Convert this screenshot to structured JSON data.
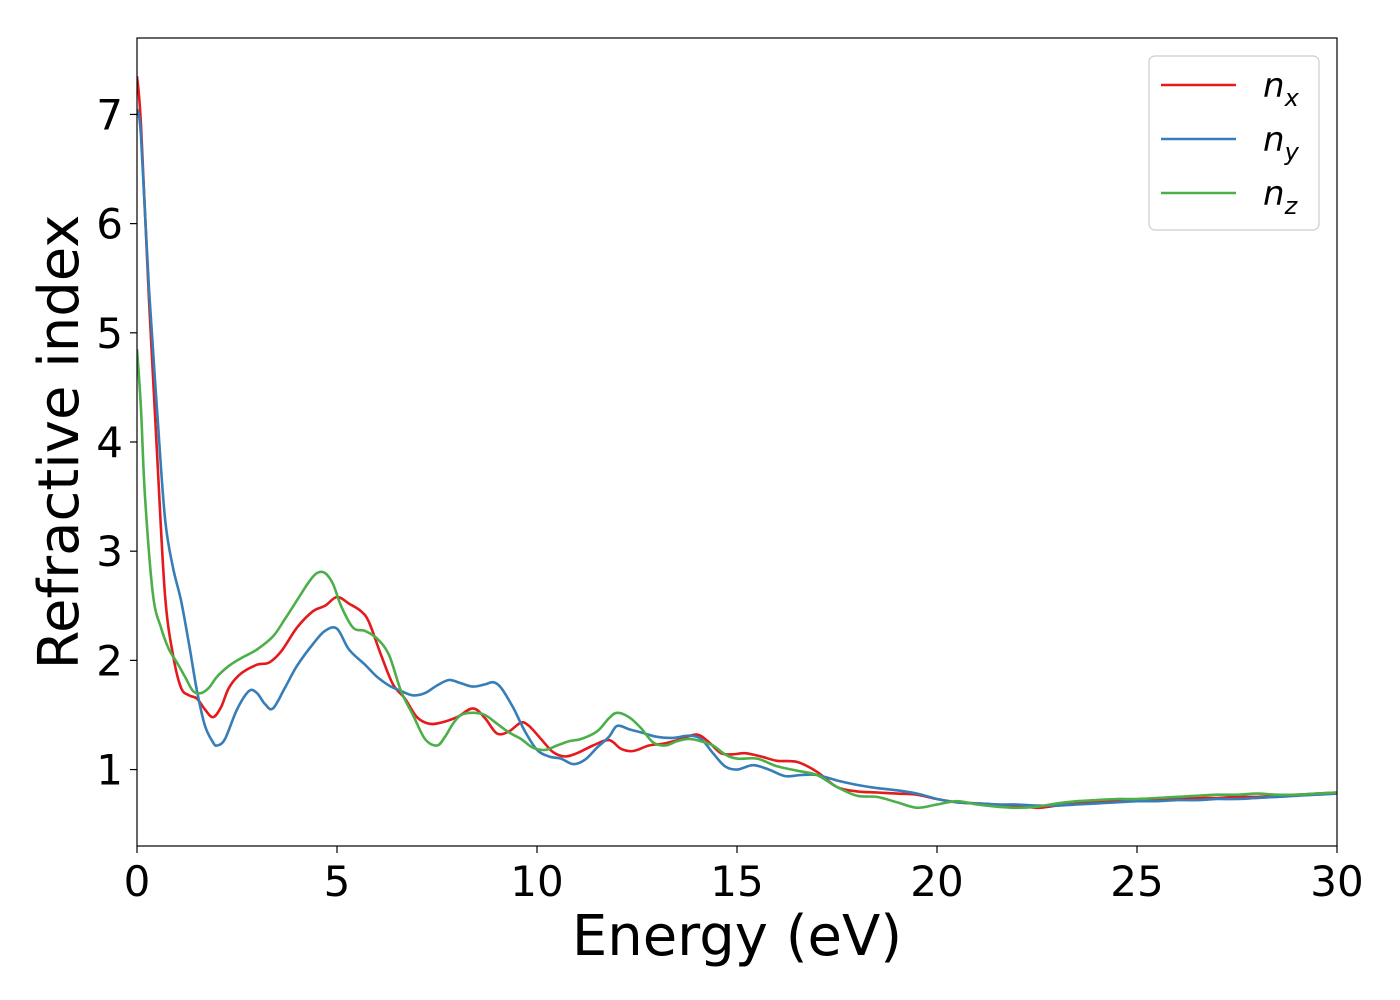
{
  "chart_data": {
    "type": "line",
    "title": "",
    "xlabel": "Energy (eV)",
    "ylabel": "Refractive index",
    "xlim": [
      0,
      30
    ],
    "ylim": [
      0.3,
      7.7
    ],
    "xticks": [
      0,
      5,
      10,
      15,
      20,
      25,
      30
    ],
    "yticks": [
      1,
      2,
      3,
      4,
      5,
      6,
      7
    ],
    "grid": false,
    "legend_position": "top-right",
    "series": [
      {
        "name": "n",
        "subscript": "x",
        "color": "#e41a1c",
        "x": [
          0,
          0.1,
          0.3,
          0.5,
          0.7,
          0.9,
          1.1,
          1.3,
          1.5,
          1.7,
          1.9,
          2.1,
          2.3,
          2.6,
          3.0,
          3.3,
          3.6,
          4.0,
          4.4,
          4.7,
          5.0,
          5.3,
          5.6,
          5.8,
          6.1,
          6.4,
          6.7,
          7.0,
          7.3,
          7.6,
          8.0,
          8.4,
          8.7,
          9.0,
          9.3,
          9.6,
          9.8,
          10.1,
          10.4,
          10.7,
          11.0,
          11.4,
          11.8,
          12.1,
          12.4,
          12.8,
          13.2,
          13.6,
          14.0,
          14.3,
          14.6,
          14.9,
          15.2,
          15.6,
          16.0,
          16.5,
          17.0,
          17.5,
          18.0,
          18.5,
          19.0,
          19.5,
          20.0,
          20.5,
          21.0,
          21.5,
          22.0,
          22.5,
          23.0,
          23.5,
          24.0,
          24.5,
          25.0,
          25.5,
          26.0,
          26.5,
          27.0,
          27.5,
          28.0,
          28.5,
          29.0,
          29.5,
          30.0
        ],
        "y": [
          7.35,
          6.9,
          5.3,
          3.9,
          2.6,
          2.05,
          1.75,
          1.68,
          1.65,
          1.55,
          1.48,
          1.57,
          1.75,
          1.88,
          1.96,
          1.98,
          2.08,
          2.3,
          2.45,
          2.5,
          2.58,
          2.52,
          2.45,
          2.35,
          2.05,
          1.78,
          1.65,
          1.48,
          1.42,
          1.43,
          1.48,
          1.56,
          1.47,
          1.33,
          1.35,
          1.43,
          1.4,
          1.28,
          1.16,
          1.12,
          1.15,
          1.22,
          1.27,
          1.19,
          1.17,
          1.22,
          1.24,
          1.28,
          1.32,
          1.25,
          1.15,
          1.14,
          1.15,
          1.12,
          1.08,
          1.07,
          0.98,
          0.84,
          0.8,
          0.79,
          0.78,
          0.77,
          0.73,
          0.7,
          0.69,
          0.68,
          0.67,
          0.65,
          0.67,
          0.69,
          0.7,
          0.71,
          0.72,
          0.72,
          0.73,
          0.74,
          0.74,
          0.75,
          0.75,
          0.76,
          0.77,
          0.78,
          0.79
        ]
      },
      {
        "name": "n",
        "subscript": "y",
        "color": "#377eb8",
        "x": [
          0,
          0.1,
          0.3,
          0.5,
          0.7,
          0.9,
          1.1,
          1.3,
          1.5,
          1.7,
          1.9,
          2.0,
          2.2,
          2.5,
          2.8,
          3.0,
          3.2,
          3.4,
          3.7,
          4.0,
          4.4,
          4.7,
          5.0,
          5.3,
          5.7,
          6.0,
          6.3,
          6.6,
          6.9,
          7.2,
          7.5,
          7.8,
          8.1,
          8.4,
          8.7,
          8.9,
          9.1,
          9.4,
          9.7,
          10.0,
          10.3,
          10.6,
          10.9,
          11.2,
          11.5,
          11.8,
          12.0,
          12.3,
          12.6,
          13.0,
          13.4,
          13.8,
          14.1,
          14.4,
          14.7,
          15.0,
          15.4,
          15.8,
          16.2,
          16.6,
          17.0,
          17.5,
          18.0,
          18.5,
          19.0,
          19.5,
          20.0,
          20.5,
          21.0,
          21.5,
          22.0,
          22.5,
          23.0,
          23.5,
          24.0,
          24.5,
          25.0,
          25.5,
          26.0,
          26.5,
          27.0,
          27.5,
          28.0,
          28.5,
          29.0,
          29.5,
          30.0
        ],
        "y": [
          7.05,
          6.8,
          5.4,
          4.3,
          3.3,
          2.85,
          2.55,
          2.15,
          1.72,
          1.4,
          1.25,
          1.22,
          1.28,
          1.55,
          1.72,
          1.7,
          1.6,
          1.56,
          1.75,
          1.95,
          2.15,
          2.27,
          2.29,
          2.1,
          1.96,
          1.85,
          1.77,
          1.72,
          1.68,
          1.7,
          1.77,
          1.82,
          1.79,
          1.76,
          1.78,
          1.8,
          1.75,
          1.57,
          1.35,
          1.18,
          1.12,
          1.1,
          1.05,
          1.09,
          1.2,
          1.3,
          1.4,
          1.37,
          1.34,
          1.3,
          1.29,
          1.31,
          1.28,
          1.15,
          1.03,
          1.0,
          1.04,
          1.0,
          0.94,
          0.95,
          0.95,
          0.9,
          0.86,
          0.83,
          0.81,
          0.78,
          0.73,
          0.7,
          0.69,
          0.68,
          0.68,
          0.67,
          0.67,
          0.68,
          0.69,
          0.7,
          0.71,
          0.71,
          0.72,
          0.72,
          0.73,
          0.73,
          0.74,
          0.75,
          0.76,
          0.77,
          0.78
        ]
      },
      {
        "name": "n",
        "subscript": "z",
        "color": "#4daf4a",
        "x": [
          0,
          0.1,
          0.2,
          0.4,
          0.6,
          0.8,
          1.0,
          1.2,
          1.4,
          1.6,
          1.8,
          2.0,
          2.3,
          2.6,
          3.0,
          3.4,
          3.7,
          4.0,
          4.3,
          4.5,
          4.7,
          4.9,
          5.1,
          5.4,
          5.7,
          6.0,
          6.3,
          6.6,
          6.9,
          7.2,
          7.5,
          7.7,
          7.9,
          8.1,
          8.4,
          8.7,
          9.0,
          9.3,
          9.6,
          9.9,
          10.2,
          10.5,
          10.8,
          11.1,
          11.5,
          11.8,
          12.0,
          12.3,
          12.6,
          12.9,
          13.2,
          13.5,
          13.8,
          14.1,
          14.4,
          14.7,
          15.0,
          15.5,
          16.0,
          16.5,
          17.0,
          17.5,
          18.0,
          18.5,
          19.0,
          19.5,
          20.0,
          20.5,
          21.0,
          21.5,
          22.0,
          22.5,
          23.0,
          23.5,
          24.0,
          24.5,
          25.0,
          25.5,
          26.0,
          26.5,
          27.0,
          27.5,
          28.0,
          28.5,
          29.0,
          29.5,
          30.0
        ],
        "y": [
          4.85,
          4.3,
          3.5,
          2.6,
          2.3,
          2.1,
          1.98,
          1.85,
          1.72,
          1.7,
          1.75,
          1.85,
          1.95,
          2.02,
          2.1,
          2.22,
          2.38,
          2.55,
          2.72,
          2.8,
          2.8,
          2.7,
          2.5,
          2.3,
          2.27,
          2.2,
          2.05,
          1.72,
          1.5,
          1.28,
          1.22,
          1.3,
          1.42,
          1.5,
          1.52,
          1.5,
          1.42,
          1.34,
          1.28,
          1.2,
          1.18,
          1.22,
          1.26,
          1.28,
          1.35,
          1.47,
          1.52,
          1.48,
          1.38,
          1.25,
          1.22,
          1.26,
          1.28,
          1.26,
          1.22,
          1.14,
          1.1,
          1.1,
          1.03,
          0.99,
          0.95,
          0.84,
          0.76,
          0.75,
          0.7,
          0.65,
          0.68,
          0.71,
          0.68,
          0.66,
          0.65,
          0.66,
          0.69,
          0.71,
          0.72,
          0.73,
          0.73,
          0.74,
          0.75,
          0.76,
          0.77,
          0.77,
          0.78,
          0.77,
          0.77,
          0.78,
          0.79
        ]
      }
    ]
  }
}
